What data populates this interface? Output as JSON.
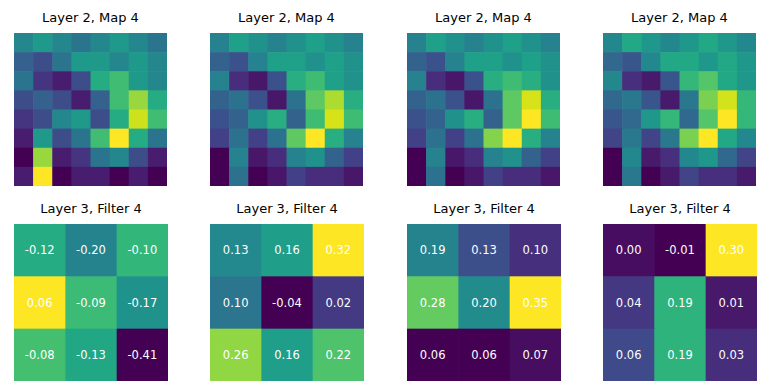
{
  "chart_data": [
    {
      "type": "image",
      "title": "Layer 2, Map 4",
      "cells": [
        [
          0.45,
          0.5,
          0.45,
          0.4,
          0.45,
          0.5,
          0.45,
          0.4
        ],
        [
          0.35,
          0.3,
          0.4,
          0.5,
          0.5,
          0.45,
          0.5,
          0.45
        ],
        [
          0.4,
          0.25,
          0.2,
          0.3,
          0.55,
          0.6,
          0.5,
          0.45
        ],
        [
          0.3,
          0.35,
          0.3,
          0.2,
          0.35,
          0.6,
          0.7,
          0.55
        ],
        [
          0.25,
          0.3,
          0.45,
          0.5,
          0.3,
          0.55,
          0.75,
          0.6
        ],
        [
          0.2,
          0.5,
          0.3,
          0.4,
          0.6,
          0.8,
          0.55,
          0.4
        ],
        [
          0.15,
          0.7,
          0.2,
          0.25,
          0.4,
          0.45,
          0.3,
          0.2
        ],
        [
          0.2,
          0.8,
          0.15,
          0.2,
          0.2,
          0.15,
          0.2,
          0.15
        ]
      ]
    },
    {
      "type": "image",
      "title": "Layer 2, Map 4",
      "cells": [
        [
          0.45,
          0.55,
          0.5,
          0.45,
          0.5,
          0.55,
          0.5,
          0.45
        ],
        [
          0.35,
          0.3,
          0.45,
          0.55,
          0.55,
          0.5,
          0.55,
          0.5
        ],
        [
          0.45,
          0.2,
          0.15,
          0.3,
          0.6,
          0.65,
          0.55,
          0.5
        ],
        [
          0.35,
          0.4,
          0.3,
          0.15,
          0.4,
          0.7,
          0.8,
          0.6
        ],
        [
          0.3,
          0.35,
          0.5,
          0.6,
          0.35,
          0.65,
          0.85,
          0.65
        ],
        [
          0.25,
          0.4,
          0.25,
          0.4,
          0.7,
          0.9,
          0.6,
          0.45
        ],
        [
          0.1,
          0.45,
          0.15,
          0.2,
          0.45,
          0.5,
          0.35,
          0.25
        ],
        [
          0.1,
          0.4,
          0.1,
          0.15,
          0.25,
          0.2,
          0.2,
          0.15
        ]
      ]
    },
    {
      "type": "image",
      "title": "Layer 2, Map 4",
      "cells": [
        [
          0.45,
          0.55,
          0.5,
          0.45,
          0.5,
          0.55,
          0.5,
          0.45
        ],
        [
          0.35,
          0.3,
          0.45,
          0.55,
          0.55,
          0.5,
          0.55,
          0.5
        ],
        [
          0.45,
          0.2,
          0.15,
          0.3,
          0.6,
          0.65,
          0.6,
          0.5
        ],
        [
          0.35,
          0.4,
          0.3,
          0.15,
          0.4,
          0.7,
          0.85,
          0.6
        ],
        [
          0.3,
          0.35,
          0.5,
          0.6,
          0.35,
          0.7,
          0.9,
          0.65
        ],
        [
          0.25,
          0.4,
          0.25,
          0.4,
          0.75,
          0.9,
          0.6,
          0.45
        ],
        [
          0.1,
          0.45,
          0.15,
          0.2,
          0.45,
          0.5,
          0.35,
          0.25
        ],
        [
          0.1,
          0.4,
          0.1,
          0.15,
          0.25,
          0.2,
          0.2,
          0.15
        ]
      ]
    },
    {
      "type": "image",
      "title": "Layer 2, Map 4",
      "cells": [
        [
          0.45,
          0.55,
          0.5,
          0.45,
          0.5,
          0.55,
          0.5,
          0.45
        ],
        [
          0.35,
          0.3,
          0.45,
          0.55,
          0.55,
          0.5,
          0.55,
          0.5
        ],
        [
          0.45,
          0.2,
          0.15,
          0.3,
          0.6,
          0.65,
          0.55,
          0.5
        ],
        [
          0.35,
          0.4,
          0.3,
          0.15,
          0.4,
          0.7,
          0.8,
          0.6
        ],
        [
          0.3,
          0.35,
          0.5,
          0.6,
          0.35,
          0.65,
          0.85,
          0.6
        ],
        [
          0.25,
          0.4,
          0.25,
          0.4,
          0.7,
          0.85,
          0.55,
          0.45
        ],
        [
          0.1,
          0.45,
          0.15,
          0.2,
          0.45,
          0.5,
          0.35,
          0.25
        ],
        [
          0.1,
          0.4,
          0.1,
          0.15,
          0.25,
          0.2,
          0.2,
          0.15
        ]
      ]
    },
    {
      "type": "heatmap",
      "title": "Layer 3, Filter 4",
      "data_labels": true,
      "cells": [
        [
          -0.12,
          -0.2,
          -0.1
        ],
        [
          0.06,
          -0.09,
          -0.17
        ],
        [
          -0.08,
          -0.13,
          -0.41
        ]
      ],
      "value_labels": [
        [
          "-0.12",
          "-0.20",
          "-0.10"
        ],
        [
          "0.06",
          "-0.09",
          "-0.17"
        ],
        [
          "-0.08",
          "-0.13",
          "-0.41"
        ]
      ]
    },
    {
      "type": "heatmap",
      "title": "Layer 3, Filter 4",
      "data_labels": true,
      "cells": [
        [
          0.13,
          0.16,
          0.32
        ],
        [
          0.1,
          -0.04,
          0.02
        ],
        [
          0.26,
          0.16,
          0.22
        ]
      ],
      "value_labels": [
        [
          "0.13",
          "0.16",
          "0.32"
        ],
        [
          "0.10",
          "-0.04",
          "0.02"
        ],
        [
          "0.26",
          "0.16",
          "0.22"
        ]
      ]
    },
    {
      "type": "heatmap",
      "title": "Layer 3, Filter 4",
      "data_labels": true,
      "cells": [
        [
          0.19,
          0.13,
          0.1
        ],
        [
          0.28,
          0.2,
          0.35
        ],
        [
          0.06,
          0.06,
          0.07
        ]
      ],
      "value_labels": [
        [
          "0.19",
          "0.13",
          "0.10"
        ],
        [
          "0.28",
          "0.20",
          "0.35"
        ],
        [
          "0.06",
          "0.06",
          "0.07"
        ]
      ]
    },
    {
      "type": "heatmap",
      "title": "Layer 3, Filter 4",
      "data_labels": true,
      "cells": [
        [
          0.0,
          -0.01,
          0.3
        ],
        [
          0.04,
          0.19,
          0.01
        ],
        [
          0.06,
          0.19,
          0.03
        ]
      ],
      "value_labels": [
        [
          "0.00",
          "-0.01",
          "0.30"
        ],
        [
          "0.04",
          "0.19",
          "0.01"
        ],
        [
          "0.06",
          "0.19",
          "0.03"
        ]
      ]
    }
  ]
}
